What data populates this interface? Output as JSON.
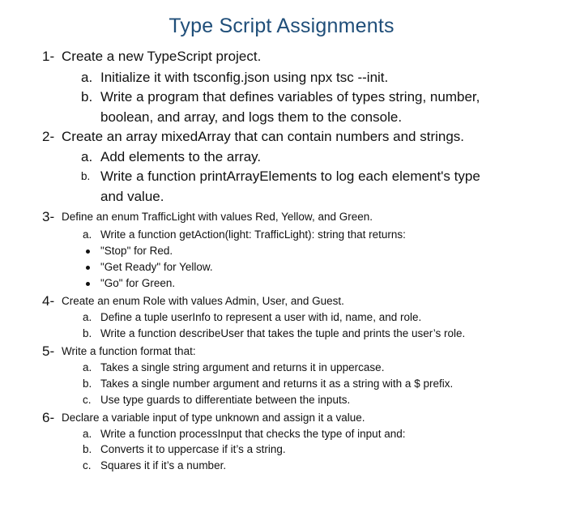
{
  "document": {
    "title": "Type Script Assignments",
    "sections": [
      {
        "number": "1-",
        "text": "Create a new TypeScript project.",
        "items": [
          {
            "marker": "a.",
            "text": "Initialize it with tsconfig.json using npx tsc --init."
          },
          {
            "marker": "b.",
            "text": "Write a program that defines variables of types string, number,",
            "continuation": "boolean, and array, and logs them to the console."
          }
        ]
      },
      {
        "number": "2-",
        "text": "Create an array mixedArray that can contain numbers and strings.",
        "items": [
          {
            "marker": "a.",
            "text": "Add elements to the array."
          },
          {
            "marker": "b.",
            "text": "Write a function printArrayElements to log each element's type",
            "continuation": "and value."
          }
        ]
      },
      {
        "number": "3-",
        "text": "Define an enum TrafficLight with values Red, Yellow, and Green.",
        "items": [
          {
            "marker": "a.",
            "text": "Write a function getAction(light: TrafficLight): string that returns:"
          }
        ],
        "bullets": [
          "\"Stop\" for Red.",
          "\"Get Ready\" for Yellow.",
          "\"Go\" for Green."
        ]
      },
      {
        "number": "4-",
        "text": "Create an enum Role with values Admin, User, and Guest.",
        "items": [
          {
            "marker": "a.",
            "text": "Define a tuple userInfo to represent a user with id, name, and role."
          },
          {
            "marker": "b.",
            "text": "Write a function describeUser that takes the tuple and prints the user’s role."
          }
        ]
      },
      {
        "number": "5-",
        "text": "Write a function format that:",
        "items": [
          {
            "marker": "a.",
            "text": "Takes a single string argument and returns it in uppercase."
          },
          {
            "marker": "b.",
            "text": "Takes a single number argument and returns it as a string with a $ prefix."
          },
          {
            "marker": "c.",
            "text": "Use type guards to differentiate between the inputs."
          }
        ]
      },
      {
        "number": "6-",
        "text": "Declare a variable input of type unknown and assign it a value.",
        "items": [
          {
            "marker": "a.",
            "text": "Write a function processInput that checks the type of input and:"
          },
          {
            "marker": "b.",
            "text": "Converts it to uppercase if it’s a string."
          },
          {
            "marker": "c.",
            "text": "Squares it if it’s a number."
          }
        ]
      }
    ]
  }
}
